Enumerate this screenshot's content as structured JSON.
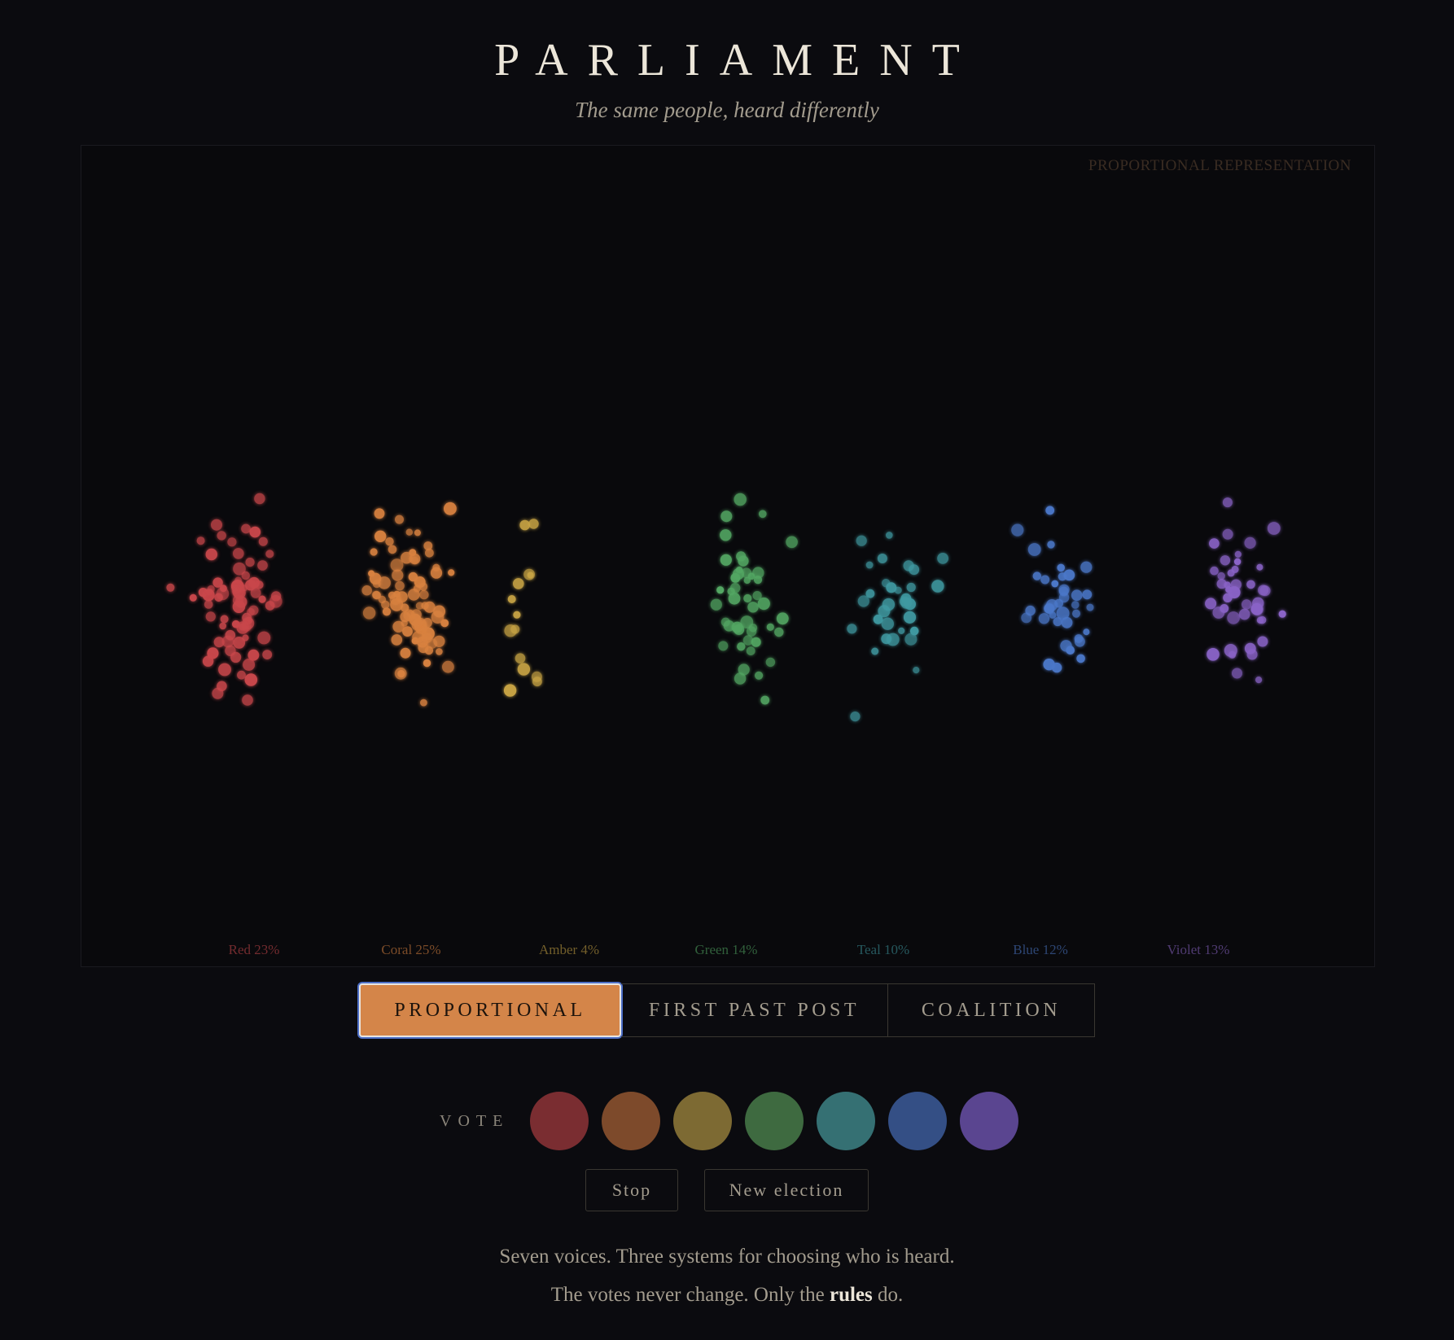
{
  "header": {
    "title": "PARLIAMENT",
    "subtitle": "The same people, heard differently"
  },
  "stage": {
    "mode_label": "PROPORTIONAL REPRESENTATION"
  },
  "parties": [
    {
      "name": "Red",
      "share": 23,
      "label": "Red 23%",
      "color": "#c9474b"
    },
    {
      "name": "Coral",
      "share": 25,
      "label": "Coral 25%",
      "color": "#d9823f"
    },
    {
      "name": "Amber",
      "share": 4,
      "label": "Amber 4%",
      "color": "#c9a544"
    },
    {
      "name": "Green",
      "share": 14,
      "label": "Green 14%",
      "color": "#52a763"
    },
    {
      "name": "Teal",
      "share": 10,
      "label": "Teal 10%",
      "color": "#3f9aa2"
    },
    {
      "name": "Blue",
      "share": 12,
      "label": "Blue 12%",
      "color": "#4c78c9"
    },
    {
      "name": "Violet",
      "share": 13,
      "label": "Violet 13%",
      "color": "#8a64c7"
    }
  ],
  "tabs": [
    {
      "label": "PROPORTIONAL",
      "active": true
    },
    {
      "label": "FIRST PAST POST",
      "active": false
    },
    {
      "label": "COALITION",
      "active": false
    }
  ],
  "vote": {
    "label": "VOTE",
    "swatches": [
      "#7a2d31",
      "#7d4a2b",
      "#7d6a33",
      "#3e6a40",
      "#357073",
      "#344f85",
      "#5a4590"
    ]
  },
  "buttons": {
    "stop": "Stop",
    "new_election": "New election"
  },
  "footer": {
    "line1": "Seven voices. Three systems for choosing who is heard.",
    "line2_before": "The votes never change. Only the ",
    "line2_bold": "rules",
    "line2_after": " do."
  },
  "colors": {
    "background": "#0b0b0f",
    "accent": "#d48549",
    "focus_ring": "#4d6fc7"
  }
}
